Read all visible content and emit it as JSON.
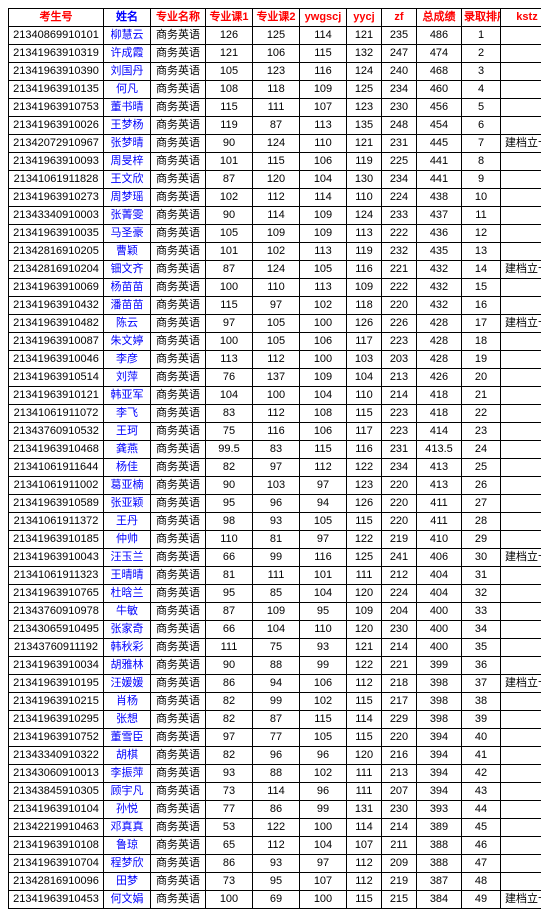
{
  "headers": [
    "考生号",
    "姓名",
    "专业名称",
    "专业课1",
    "专业课2",
    "ywgscj",
    "yycj",
    "zf",
    "总成绩",
    "录取排序",
    "kstz"
  ],
  "col_classes": [
    "c0",
    "c1",
    "c2",
    "c3",
    "c4",
    "c5",
    "c6",
    "c7",
    "c8",
    "c9",
    "c10"
  ],
  "rows": [
    [
      "21340869910101",
      "柳慧云",
      "商务英语",
      "126",
      "125",
      "114",
      "121",
      "235",
      "486",
      "1",
      ""
    ],
    [
      "21341963910319",
      "许成霞",
      "商务英语",
      "121",
      "106",
      "115",
      "132",
      "247",
      "474",
      "2",
      ""
    ],
    [
      "21341963910390",
      "刘国丹",
      "商务英语",
      "105",
      "123",
      "116",
      "124",
      "240",
      "468",
      "3",
      ""
    ],
    [
      "21341963910135",
      "何凡",
      "商务英语",
      "108",
      "118",
      "109",
      "125",
      "234",
      "460",
      "4",
      ""
    ],
    [
      "21341963910753",
      "董书晴",
      "商务英语",
      "115",
      "111",
      "107",
      "123",
      "230",
      "456",
      "5",
      ""
    ],
    [
      "21341963910026",
      "王梦杨",
      "商务英语",
      "119",
      "87",
      "113",
      "135",
      "248",
      "454",
      "6",
      ""
    ],
    [
      "21342072910967",
      "张梦晴",
      "商务英语",
      "90",
      "124",
      "110",
      "121",
      "231",
      "445",
      "7",
      "建档立卡"
    ],
    [
      "21341963910093",
      "周旻梓",
      "商务英语",
      "101",
      "115",
      "106",
      "119",
      "225",
      "441",
      "8",
      ""
    ],
    [
      "21341061911828",
      "王文欣",
      "商务英语",
      "87",
      "120",
      "104",
      "130",
      "234",
      "441",
      "9",
      ""
    ],
    [
      "21341963910273",
      "周梦瑶",
      "商务英语",
      "102",
      "112",
      "114",
      "110",
      "224",
      "438",
      "10",
      ""
    ],
    [
      "21343340910003",
      "张菁雯",
      "商务英语",
      "90",
      "114",
      "109",
      "124",
      "233",
      "437",
      "11",
      ""
    ],
    [
      "21341963910035",
      "马圣豪",
      "商务英语",
      "105",
      "109",
      "109",
      "113",
      "222",
      "436",
      "12",
      ""
    ],
    [
      "21342816910205",
      "曹颖",
      "商务英语",
      "101",
      "102",
      "113",
      "119",
      "232",
      "435",
      "13",
      ""
    ],
    [
      "21342816910204",
      "钿文齐",
      "商务英语",
      "87",
      "124",
      "105",
      "116",
      "221",
      "432",
      "14",
      "建档立卡"
    ],
    [
      "21341963910069",
      "杨苗苗",
      "商务英语",
      "100",
      "110",
      "113",
      "109",
      "222",
      "432",
      "15",
      ""
    ],
    [
      "21341963910432",
      "潘苗苗",
      "商务英语",
      "115",
      "97",
      "102",
      "118",
      "220",
      "432",
      "16",
      ""
    ],
    [
      "21341963910482",
      "陈云",
      "商务英语",
      "97",
      "105",
      "100",
      "126",
      "226",
      "428",
      "17",
      "建档立卡"
    ],
    [
      "21341963910087",
      "朱文婷",
      "商务英语",
      "100",
      "105",
      "106",
      "117",
      "223",
      "428",
      "18",
      ""
    ],
    [
      "21341963910046",
      "李彦",
      "商务英语",
      "113",
      "112",
      "100",
      "103",
      "203",
      "428",
      "19",
      ""
    ],
    [
      "21341963910514",
      "刘萍",
      "商务英语",
      "76",
      "137",
      "109",
      "104",
      "213",
      "426",
      "20",
      ""
    ],
    [
      "21341963910121",
      "韩亚军",
      "商务英语",
      "104",
      "100",
      "104",
      "110",
      "214",
      "418",
      "21",
      ""
    ],
    [
      "21341061911072",
      "李飞",
      "商务英语",
      "83",
      "112",
      "108",
      "115",
      "223",
      "418",
      "22",
      ""
    ],
    [
      "21343760910532",
      "王珂",
      "商务英语",
      "75",
      "116",
      "106",
      "117",
      "223",
      "414",
      "23",
      ""
    ],
    [
      "21341963910468",
      "龚燕",
      "商务英语",
      "99.5",
      "83",
      "115",
      "116",
      "231",
      "413.5",
      "24",
      ""
    ],
    [
      "21341061911644",
      "杨佳",
      "商务英语",
      "82",
      "97",
      "112",
      "122",
      "234",
      "413",
      "25",
      ""
    ],
    [
      "21341061911002",
      "葛亚楠",
      "商务英语",
      "90",
      "103",
      "97",
      "123",
      "220",
      "413",
      "26",
      ""
    ],
    [
      "21341963910589",
      "张亚颖",
      "商务英语",
      "95",
      "96",
      "94",
      "126",
      "220",
      "411",
      "27",
      ""
    ],
    [
      "21341061911372",
      "王丹",
      "商务英语",
      "98",
      "93",
      "105",
      "115",
      "220",
      "411",
      "28",
      ""
    ],
    [
      "21341963910185",
      "仲帅",
      "商务英语",
      "110",
      "81",
      "97",
      "122",
      "219",
      "410",
      "29",
      ""
    ],
    [
      "21341963910043",
      "汪玉兰",
      "商务英语",
      "66",
      "99",
      "116",
      "125",
      "241",
      "406",
      "30",
      "建档立卡"
    ],
    [
      "21341061911323",
      "王晴晴",
      "商务英语",
      "81",
      "111",
      "101",
      "111",
      "212",
      "404",
      "31",
      ""
    ],
    [
      "21341963910765",
      "杜晗兰",
      "商务英语",
      "95",
      "85",
      "104",
      "120",
      "224",
      "404",
      "32",
      ""
    ],
    [
      "21343760910978",
      "牛敏",
      "商务英语",
      "87",
      "109",
      "95",
      "109",
      "204",
      "400",
      "33",
      ""
    ],
    [
      "21343065910495",
      "张家奇",
      "商务英语",
      "66",
      "104",
      "110",
      "120",
      "230",
      "400",
      "34",
      ""
    ],
    [
      "21343760911192",
      "韩秋彩",
      "商务英语",
      "111",
      "75",
      "93",
      "121",
      "214",
      "400",
      "35",
      ""
    ],
    [
      "21341963910034",
      "胡雅林",
      "商务英语",
      "90",
      "88",
      "99",
      "122",
      "221",
      "399",
      "36",
      ""
    ],
    [
      "21341963910195",
      "汪媛媛",
      "商务英语",
      "86",
      "94",
      "106",
      "112",
      "218",
      "398",
      "37",
      "建档立卡"
    ],
    [
      "21341963910215",
      "肖杨",
      "商务英语",
      "82",
      "99",
      "102",
      "115",
      "217",
      "398",
      "38",
      ""
    ],
    [
      "21341963910295",
      "张想",
      "商务英语",
      "82",
      "87",
      "115",
      "114",
      "229",
      "398",
      "39",
      ""
    ],
    [
      "21341963910752",
      "董雪臣",
      "商务英语",
      "97",
      "77",
      "105",
      "115",
      "220",
      "394",
      "40",
      ""
    ],
    [
      "21343340910322",
      "胡棋",
      "商务英语",
      "82",
      "96",
      "96",
      "120",
      "216",
      "394",
      "41",
      ""
    ],
    [
      "21343060910013",
      "李振萍",
      "商务英语",
      "93",
      "88",
      "102",
      "111",
      "213",
      "394",
      "42",
      ""
    ],
    [
      "21343845910305",
      "顾宇凡",
      "商务英语",
      "73",
      "114",
      "96",
      "111",
      "207",
      "394",
      "43",
      ""
    ],
    [
      "21341963910104",
      "孙悦",
      "商务英语",
      "77",
      "86",
      "99",
      "131",
      "230",
      "393",
      "44",
      ""
    ],
    [
      "21342219910463",
      "邓真真",
      "商务英语",
      "53",
      "122",
      "100",
      "114",
      "214",
      "389",
      "45",
      ""
    ],
    [
      "21341963910108",
      "鲁琼",
      "商务英语",
      "65",
      "112",
      "104",
      "107",
      "211",
      "388",
      "46",
      ""
    ],
    [
      "21341963910704",
      "程梦欣",
      "商务英语",
      "86",
      "93",
      "97",
      "112",
      "209",
      "388",
      "47",
      ""
    ],
    [
      "21342816910096",
      "田梦",
      "商务英语",
      "73",
      "95",
      "107",
      "112",
      "219",
      "387",
      "48",
      ""
    ],
    [
      "21341963910453",
      "何文娟",
      "商务英语",
      "100",
      "69",
      "100",
      "115",
      "215",
      "384",
      "49",
      "建档立卡"
    ]
  ]
}
